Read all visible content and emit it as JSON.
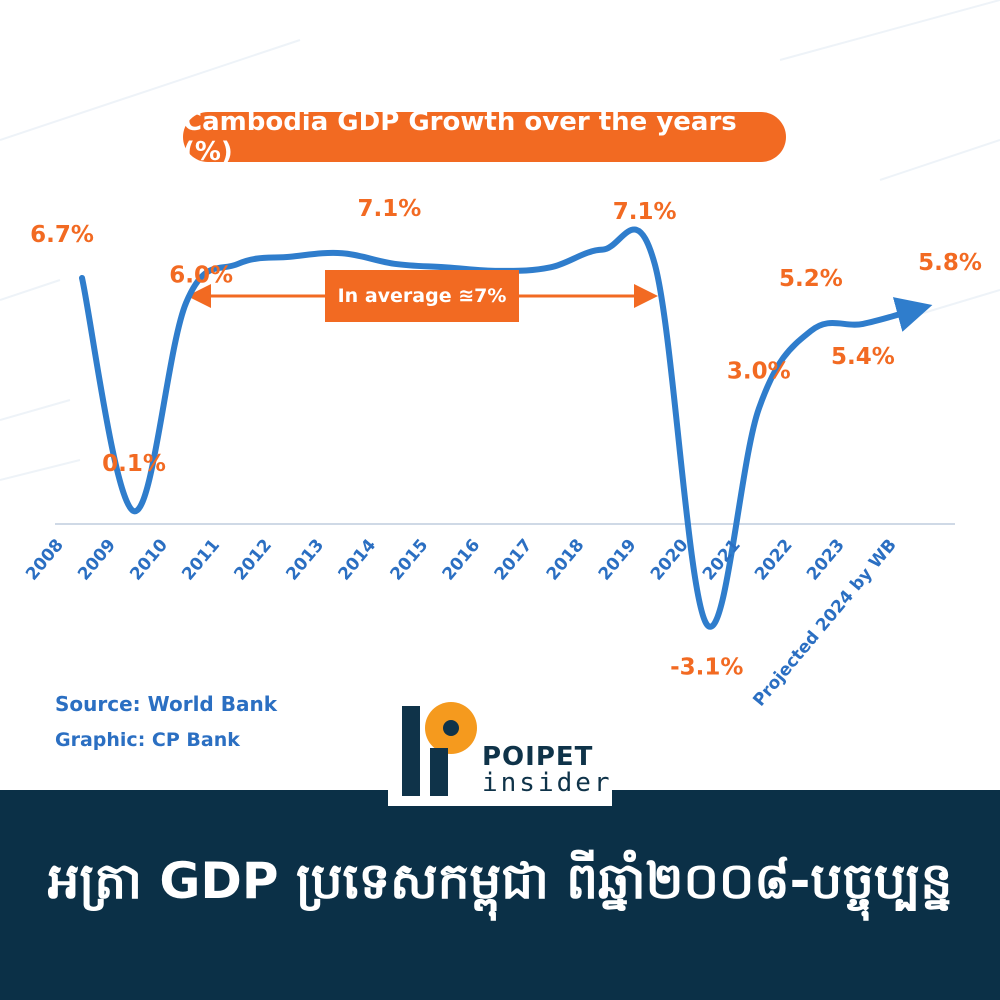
{
  "chart_data": {
    "type": "line",
    "title": "Cambodia GDP Growth over the years (%)",
    "categories": [
      "2008",
      "2009",
      "2010",
      "2011",
      "2012",
      "2013",
      "2014",
      "2015",
      "2016",
      "2017",
      "2018",
      "2019",
      "2020",
      "2021",
      "2022",
      "2023",
      "Projected 2024 by WB"
    ],
    "series": [
      {
        "values": [
          6.7,
          0.1,
          6.0,
          7.1,
          7.3,
          7.4,
          7.1,
          7.0,
          6.9,
          7.0,
          7.5,
          7.1,
          -3.1,
          3.0,
          5.2,
          5.4,
          5.8
        ]
      }
    ],
    "point_labels": [
      {
        "index": 0,
        "text": "6.7%"
      },
      {
        "index": 1,
        "text": "0.1%"
      },
      {
        "index": 2,
        "text": "6.0%"
      },
      {
        "index": 6,
        "text": "7.1%"
      },
      {
        "index": 11,
        "text": "7.1%"
      },
      {
        "index": 12,
        "text": "-3.1%"
      },
      {
        "index": 13,
        "text": "3.0%"
      },
      {
        "index": 14,
        "text": "5.2%"
      },
      {
        "index": 15,
        "text": "5.4%"
      },
      {
        "index": 16,
        "text": "5.8%"
      }
    ],
    "annotation": "In average ≊7%",
    "ylim": [
      -3.6,
      8.0
    ],
    "grid": false,
    "line_color": "#2f7dcc",
    "label_color": "#f26a22",
    "tick_color": "#2b6fc2"
  },
  "source": "Source: World Bank",
  "graphic": "Graphic: CP Bank",
  "logo": {
    "line1": "POIPET",
    "line2": "insider"
  },
  "footer": "អត្រា GDP ប្រទេសកម្ពុជា ពីឆ្នាំ២០០៨-បច្ចុប្បន្ន",
  "colors": {
    "accent": "#f26a22",
    "footer_bg": "#0b3047",
    "axis": "#cfd9e6"
  }
}
